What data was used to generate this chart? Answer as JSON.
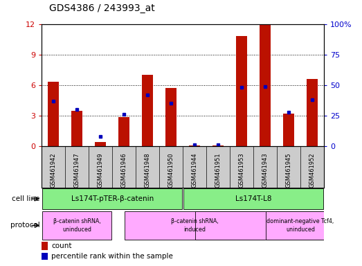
{
  "title": "GDS4386 / 243993_at",
  "samples": [
    "GSM461942",
    "GSM461947",
    "GSM461949",
    "GSM461946",
    "GSM461948",
    "GSM461950",
    "GSM461944",
    "GSM461951",
    "GSM461953",
    "GSM461943",
    "GSM461945",
    "GSM461952"
  ],
  "counts": [
    6.3,
    3.5,
    0.4,
    2.9,
    7.0,
    5.7,
    0.05,
    0.05,
    10.8,
    11.9,
    3.2,
    6.6
  ],
  "percentiles": [
    37,
    30,
    8,
    26,
    42,
    35,
    1.5,
    1.0,
    48,
    49,
    28,
    38
  ],
  "ylim_left": [
    0,
    12
  ],
  "ylim_right": [
    0,
    100
  ],
  "yticks_left": [
    0,
    3,
    6,
    9,
    12
  ],
  "yticks_right": [
    0,
    25,
    50,
    75,
    100
  ],
  "ytick_right_labels": [
    "0",
    "25",
    "50",
    "75",
    "100%"
  ],
  "bar_color": "#bb1100",
  "dot_color": "#0000bb",
  "cell_line_color": "#88ee88",
  "protocol_color": "#ffaaff",
  "legend_count_color": "#bb1100",
  "legend_pct_color": "#0000bb",
  "axis_color_left": "#cc0000",
  "axis_color_right": "#0000cc",
  "sample_bg_color": "#cccccc",
  "plot_bg_color": "#ffffff"
}
